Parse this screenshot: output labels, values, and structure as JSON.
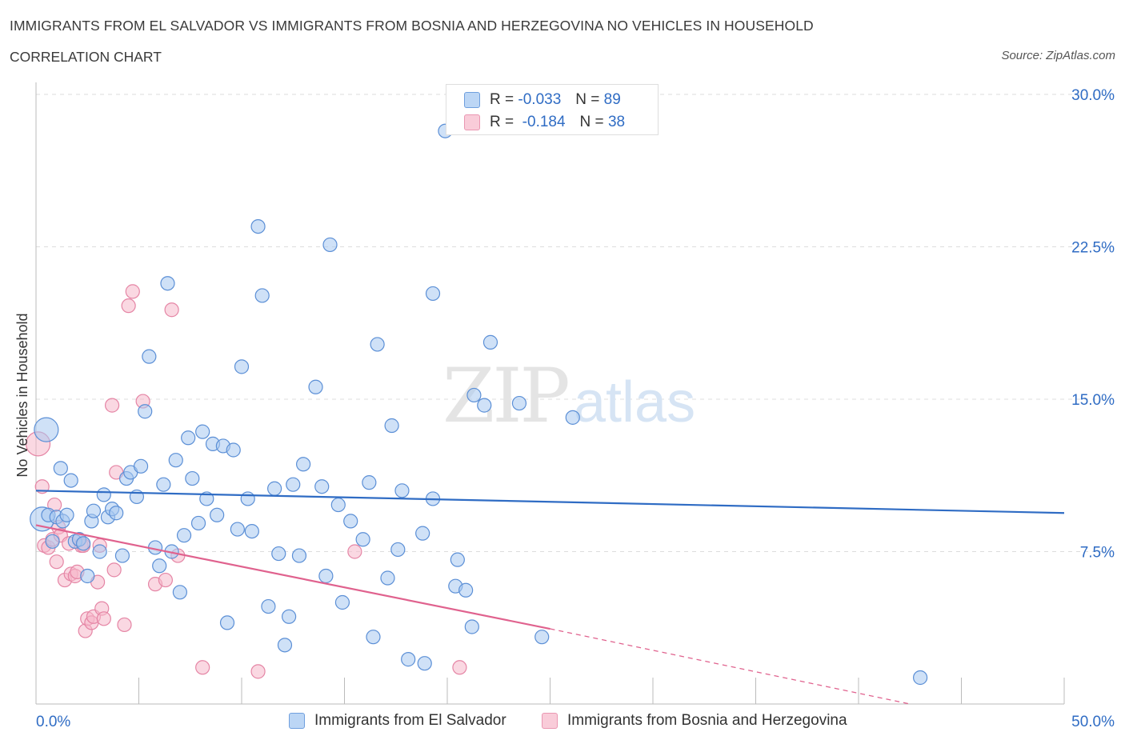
{
  "header": {
    "title": "IMMIGRANTS FROM EL SALVADOR VS IMMIGRANTS FROM BOSNIA AND HERZEGOVINA NO VEHICLES IN HOUSEHOLD",
    "subtitle": "CORRELATION CHART",
    "source": "Source: ZipAtlas.com"
  },
  "watermark": {
    "zip": "ZIP",
    "atlas": "atlas"
  },
  "legend": {
    "rows": [
      {
        "r_label": "R =",
        "r_value": "-0.033",
        "n_label": "N =",
        "n_value": "89"
      },
      {
        "r_label": "R =",
        "r_value": "-0.184",
        "n_label": "N =",
        "n_value": "38"
      }
    ]
  },
  "colors": {
    "series1_fill": "#a8c8f0",
    "series1_stroke": "#5b8fd6",
    "series1_line": "#2f6cc4",
    "series2_fill": "#f6b8cb",
    "series2_stroke": "#e585a5",
    "series2_line": "#e0628e",
    "grid": "#dddddd",
    "axis_label": "#2f6cc4"
  },
  "chart_data": {
    "type": "scatter",
    "title": "IMMIGRANTS FROM EL SALVADOR VS IMMIGRANTS FROM BOSNIA AND HERZEGOVINA NO VEHICLES IN HOUSEHOLD",
    "ylabel": "No Vehicles in Household",
    "xlim": [
      0,
      50
    ],
    "ylim": [
      0,
      30
    ],
    "x_tick_labels": [
      "0.0%",
      "50.0%"
    ],
    "y_ticks": [
      7.5,
      15.0,
      22.5,
      30.0
    ],
    "y_tick_labels": [
      "7.5%",
      "15.0%",
      "22.5%",
      "30.0%"
    ],
    "grid": true,
    "series": [
      {
        "name": "Immigrants from El Salvador",
        "r": -0.033,
        "n": 89,
        "trend": {
          "x": [
            0,
            50
          ],
          "y": [
            10.5,
            9.4
          ]
        },
        "points": [
          [
            0.3,
            9.1,
            1
          ],
          [
            0.5,
            13.5,
            1
          ],
          [
            0.6,
            9.3,
            0
          ],
          [
            0.8,
            8.0,
            0
          ],
          [
            1.0,
            9.2,
            0
          ],
          [
            1.2,
            11.6,
            0
          ],
          [
            1.3,
            9.0,
            0
          ],
          [
            1.5,
            9.3,
            0
          ],
          [
            1.7,
            11.0,
            0
          ],
          [
            1.9,
            8.0,
            0
          ],
          [
            2.1,
            8.1,
            0
          ],
          [
            2.3,
            7.9,
            0
          ],
          [
            2.5,
            6.3,
            0
          ],
          [
            2.7,
            9.0,
            0
          ],
          [
            2.8,
            9.5,
            0
          ],
          [
            3.1,
            7.5,
            0
          ],
          [
            3.3,
            10.3,
            0
          ],
          [
            3.5,
            9.2,
            0
          ],
          [
            3.7,
            9.6,
            0
          ],
          [
            3.9,
            9.4,
            0
          ],
          [
            4.2,
            7.3,
            0
          ],
          [
            4.4,
            11.1,
            0
          ],
          [
            4.6,
            11.4,
            0
          ],
          [
            4.9,
            10.2,
            0
          ],
          [
            5.1,
            11.7,
            0
          ],
          [
            5.3,
            14.4,
            0
          ],
          [
            5.5,
            17.1,
            0
          ],
          [
            5.8,
            7.7,
            0
          ],
          [
            6.0,
            6.8,
            0
          ],
          [
            6.2,
            10.8,
            0
          ],
          [
            6.4,
            20.7,
            0
          ],
          [
            6.6,
            7.5,
            0
          ],
          [
            6.8,
            12.0,
            0
          ],
          [
            7.0,
            5.5,
            0
          ],
          [
            7.2,
            8.3,
            0
          ],
          [
            7.4,
            13.1,
            0
          ],
          [
            7.6,
            11.1,
            0
          ],
          [
            7.9,
            8.9,
            0
          ],
          [
            8.1,
            13.4,
            0
          ],
          [
            8.3,
            10.1,
            0
          ],
          [
            8.6,
            12.8,
            0
          ],
          [
            8.8,
            9.3,
            0
          ],
          [
            9.1,
            12.7,
            0
          ],
          [
            9.3,
            4.0,
            0
          ],
          [
            9.6,
            12.5,
            0
          ],
          [
            9.8,
            8.6,
            0
          ],
          [
            10.0,
            16.6,
            0
          ],
          [
            10.3,
            10.1,
            0
          ],
          [
            10.5,
            8.5,
            0
          ],
          [
            10.8,
            23.5,
            0
          ],
          [
            11.0,
            20.1,
            0
          ],
          [
            11.3,
            4.8,
            0
          ],
          [
            11.6,
            10.6,
            0
          ],
          [
            11.8,
            7.4,
            0
          ],
          [
            12.1,
            2.9,
            0
          ],
          [
            12.3,
            4.3,
            0
          ],
          [
            12.5,
            10.8,
            0
          ],
          [
            12.8,
            7.3,
            0
          ],
          [
            13.0,
            11.8,
            0
          ],
          [
            13.6,
            15.6,
            0
          ],
          [
            13.9,
            10.7,
            0
          ],
          [
            14.1,
            6.3,
            0
          ],
          [
            14.3,
            22.6,
            0
          ],
          [
            14.7,
            9.8,
            0
          ],
          [
            14.9,
            5.0,
            0
          ],
          [
            15.3,
            9.0,
            0
          ],
          [
            15.9,
            8.1,
            0
          ],
          [
            16.2,
            10.9,
            0
          ],
          [
            16.4,
            3.3,
            0
          ],
          [
            16.6,
            17.7,
            0
          ],
          [
            17.1,
            6.2,
            0
          ],
          [
            17.3,
            13.7,
            0
          ],
          [
            17.6,
            7.6,
            0
          ],
          [
            17.8,
            10.5,
            0
          ],
          [
            18.1,
            2.2,
            0
          ],
          [
            18.8,
            8.4,
            0
          ],
          [
            18.9,
            2.0,
            0
          ],
          [
            19.3,
            20.2,
            0
          ],
          [
            19.3,
            10.1,
            0
          ],
          [
            19.9,
            28.2,
            0
          ],
          [
            20.4,
            5.8,
            0
          ],
          [
            20.5,
            7.1,
            0
          ],
          [
            20.9,
            5.6,
            0
          ],
          [
            21.2,
            3.8,
            0
          ],
          [
            21.3,
            15.2,
            0
          ],
          [
            21.8,
            14.7,
            0
          ],
          [
            22.1,
            17.8,
            0
          ],
          [
            23.5,
            14.8,
            0
          ],
          [
            24.6,
            3.3,
            0
          ],
          [
            26.1,
            14.1,
            0
          ],
          [
            43.0,
            1.3,
            0
          ]
        ]
      },
      {
        "name": "Immigrants from Bosnia and Herzegovina",
        "r": -0.184,
        "n": 38,
        "trend": {
          "x": [
            0,
            25
          ],
          "y": [
            8.8,
            3.7
          ]
        },
        "trend_dashed": {
          "x": [
            25,
            42.5
          ],
          "y": [
            3.7,
            0.0
          ]
        },
        "points": [
          [
            0.1,
            12.8,
            1
          ],
          [
            0.3,
            10.7,
            0
          ],
          [
            0.4,
            7.8,
            0
          ],
          [
            0.6,
            7.7,
            0
          ],
          [
            0.8,
            8.1,
            0
          ],
          [
            0.9,
            9.8,
            0
          ],
          [
            1.0,
            7.0,
            0
          ],
          [
            1.1,
            8.7,
            0
          ],
          [
            1.2,
            8.3,
            0
          ],
          [
            1.4,
            6.1,
            0
          ],
          [
            1.6,
            7.9,
            0
          ],
          [
            1.7,
            6.4,
            0
          ],
          [
            1.9,
            6.3,
            0
          ],
          [
            2.0,
            6.5,
            0
          ],
          [
            2.1,
            8.1,
            0
          ],
          [
            2.2,
            7.8,
            0
          ],
          [
            2.3,
            7.8,
            0
          ],
          [
            2.4,
            3.6,
            0
          ],
          [
            2.5,
            4.2,
            0
          ],
          [
            2.7,
            4.0,
            0
          ],
          [
            2.8,
            4.3,
            0
          ],
          [
            3.0,
            6.0,
            0
          ],
          [
            3.1,
            7.8,
            0
          ],
          [
            3.2,
            4.7,
            0
          ],
          [
            3.3,
            4.2,
            0
          ],
          [
            3.7,
            14.7,
            0
          ],
          [
            3.8,
            6.6,
            0
          ],
          [
            3.9,
            11.4,
            0
          ],
          [
            4.3,
            3.9,
            0
          ],
          [
            4.5,
            19.6,
            0
          ],
          [
            4.7,
            20.3,
            0
          ],
          [
            5.2,
            14.9,
            0
          ],
          [
            5.8,
            5.9,
            0
          ],
          [
            6.3,
            6.1,
            0
          ],
          [
            6.6,
            19.4,
            0
          ],
          [
            6.9,
            7.3,
            0
          ],
          [
            8.1,
            1.8,
            0
          ],
          [
            10.8,
            1.6,
            0
          ],
          [
            15.5,
            7.5,
            0
          ],
          [
            20.6,
            1.8,
            0
          ]
        ]
      }
    ]
  }
}
